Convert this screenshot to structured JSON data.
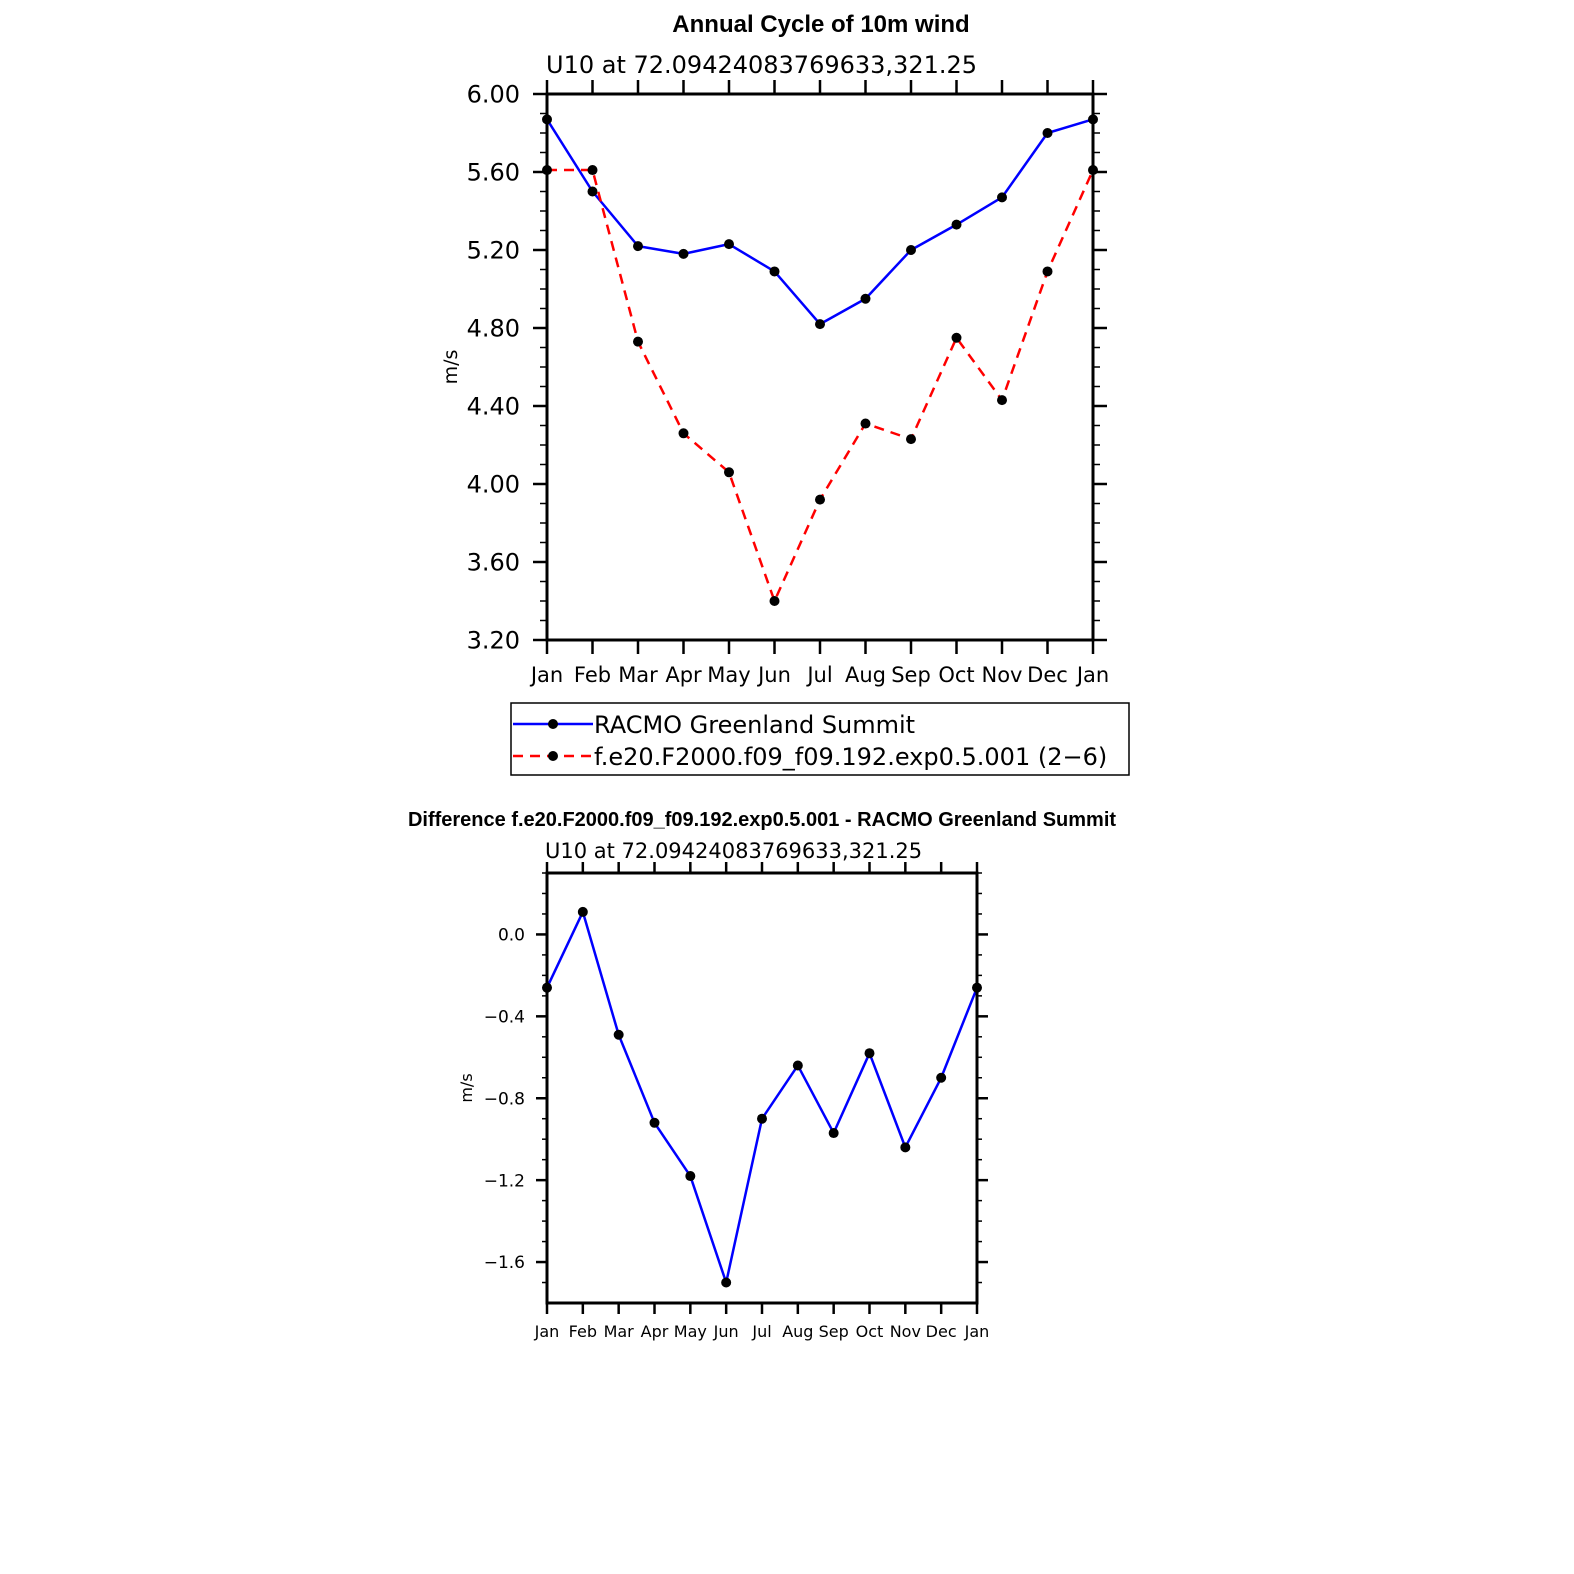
{
  "chart_data": [
    {
      "type": "line",
      "title": "Annual Cycle of 10m wind",
      "subtitle": "U10 at 72.09424083769633,321.25",
      "xlabel": "",
      "ylabel": "m/s",
      "categories": [
        "Jan",
        "Feb",
        "Mar",
        "Apr",
        "May",
        "Jun",
        "Jul",
        "Aug",
        "Sep",
        "Oct",
        "Nov",
        "Dec",
        "Jan"
      ],
      "ylim": [
        3.2,
        6.0
      ],
      "yticks": [
        "6.00",
        "5.60",
        "5.20",
        "4.80",
        "4.40",
        "4.00",
        "3.60",
        "3.20"
      ],
      "grid": false,
      "legend_position": "bottom",
      "series": [
        {
          "name": "RACMO Greenland Summit",
          "color": "#0000ff",
          "dash": "solid",
          "values": [
            5.87,
            5.5,
            5.22,
            5.18,
            5.23,
            5.09,
            4.82,
            4.95,
            5.2,
            5.33,
            5.47,
            5.8,
            5.87
          ]
        },
        {
          "name": "f.e20.F2000.f09_f09.192.exp0.5.001 (2−6)",
          "color": "#ff0000",
          "dash": "dashed",
          "values": [
            5.61,
            5.61,
            4.73,
            4.26,
            4.06,
            3.4,
            3.92,
            4.31,
            4.23,
            4.75,
            4.43,
            5.09,
            5.61
          ]
        }
      ]
    },
    {
      "type": "line",
      "title": "Difference f.e20.F2000.f09_f09.192.exp0.5.001 - RACMO Greenland Summit",
      "subtitle": "U10 at 72.09424083769633,321.25",
      "xlabel": "",
      "ylabel": "m/s",
      "categories": [
        "Jan",
        "Feb",
        "Mar",
        "Apr",
        "May",
        "Jun",
        "Jul",
        "Aug",
        "Sep",
        "Oct",
        "Nov",
        "Dec",
        "Jan"
      ],
      "ylim": [
        -1.8,
        0.3
      ],
      "yticks": [
        "0.0",
        "−0.4",
        "−0.8",
        "−1.2",
        "−1.6"
      ],
      "ytick_values": [
        0.0,
        -0.4,
        -0.8,
        -1.2,
        -1.6
      ],
      "grid": false,
      "series": [
        {
          "color": "#0000ff",
          "dash": "solid",
          "values": [
            -0.26,
            0.11,
            -0.49,
            -0.92,
            -1.18,
            -1.7,
            -0.9,
            -0.64,
            -0.97,
            -0.58,
            -1.04,
            -0.7,
            -0.26
          ]
        }
      ]
    }
  ]
}
